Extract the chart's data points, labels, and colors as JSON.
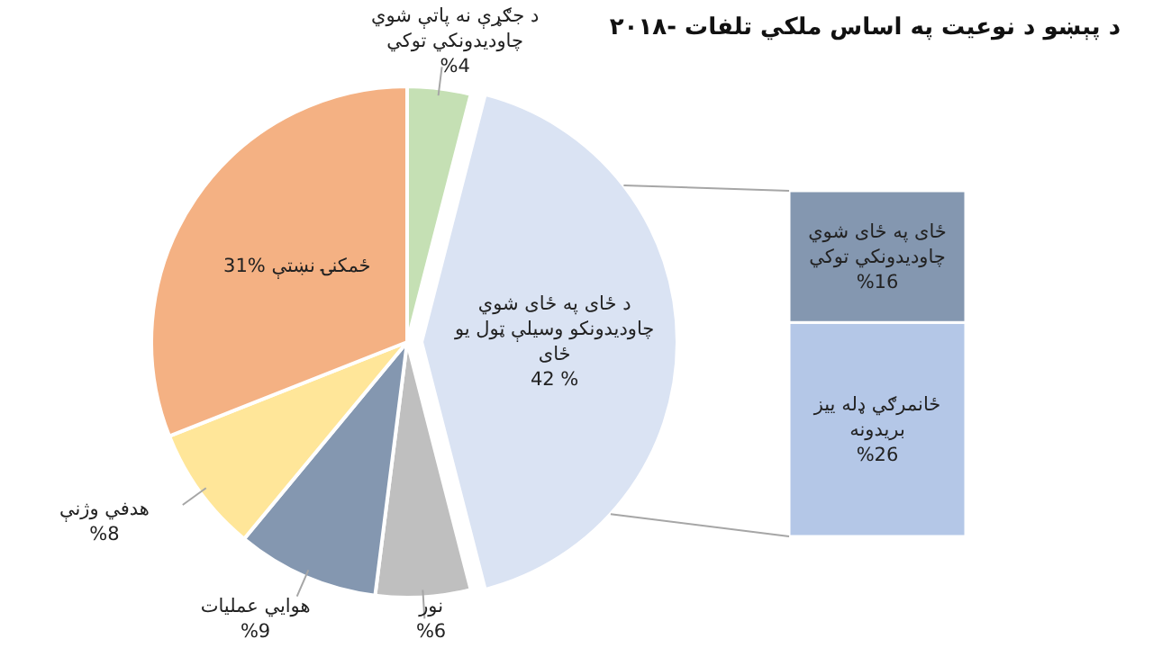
{
  "chart_data": [
    {
      "type": "pie",
      "title": "د پېښو د نوعیت په اساس ملکي تلفات -۲۰۱۸",
      "categories": [
        "د جګړې نه پاتې شوي چاودیدونکي توکي",
        "د ځای په ځای شوي چاودیدونکو وسیلې ټول یو ځای",
        "نور",
        "هوايي عملیات",
        "هدفي وژنې",
        "ځمکنۍ نښتې"
      ],
      "values": [
        4,
        42,
        6,
        9,
        8,
        31
      ],
      "value_labels": [
        "%4",
        "% 42",
        "%6",
        "%9",
        "%8",
        "%31"
      ],
      "colors": [
        "#c5e0b4",
        "#dae3f3",
        "#bfbfbf",
        "#8497b0",
        "#ffe699",
        "#f4b183"
      ]
    },
    {
      "type": "bar",
      "stacked": true,
      "categories": [
        null
      ],
      "series": [
        {
          "name": "ځانمرګي ډله ییز بریدونه",
          "color": "#b4c7e7",
          "values": [
            26
          ],
          "value_labels": [
            "%26"
          ]
        },
        {
          "name": "ځای په ځای شوي چاودیدونکي توکي",
          "color": "#8497b0",
          "values": [
            16
          ],
          "value_labels": [
            "%16"
          ]
        }
      ]
    }
  ]
}
